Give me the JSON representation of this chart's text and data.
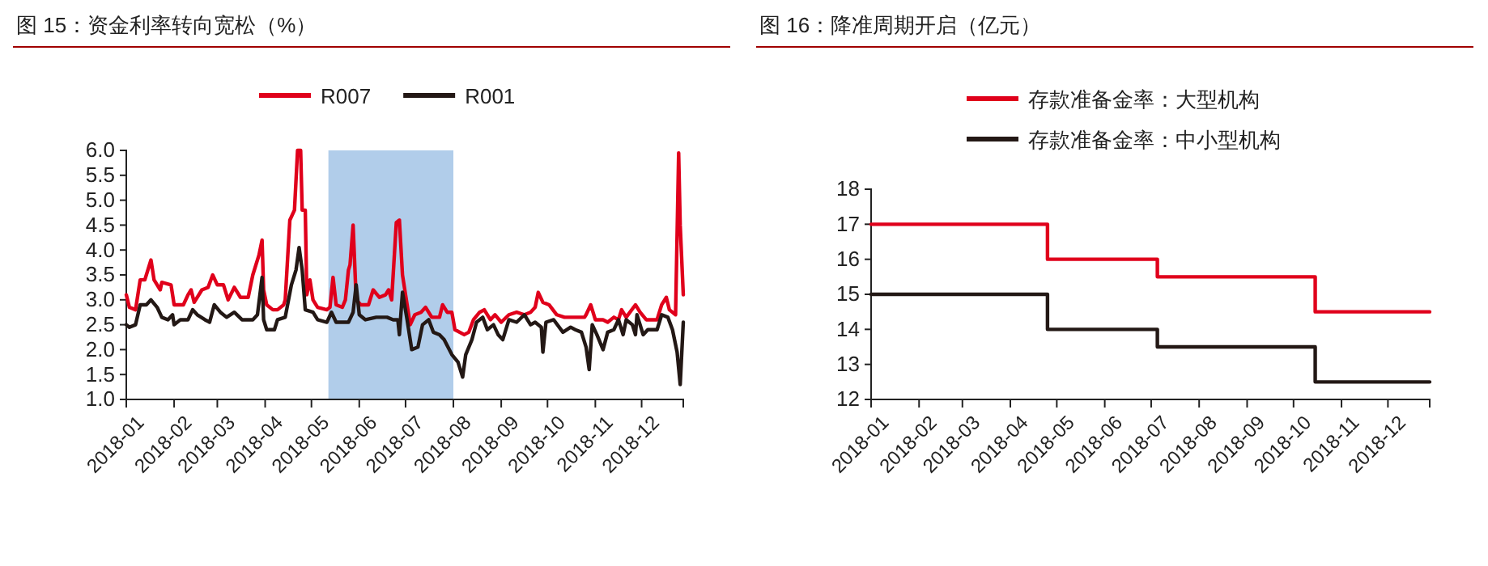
{
  "chart_data": [
    {
      "type": "line",
      "title": "图 15：资金利率转向宽松（%）",
      "legend": "top left",
      "xlim": [
        "2018-01-01",
        "2018-12-28"
      ],
      "xticks": [
        "2018-01",
        "2018-02",
        "2018-03",
        "2018-04",
        "2018-05",
        "2018-06",
        "2018-07",
        "2018-08",
        "2018-09",
        "2018-10",
        "2018-11",
        "2018-12"
      ],
      "ylim": [
        1,
        6
      ],
      "yticks": [
        {
          "value": 1,
          "label": "1.0"
        },
        {
          "value": 1.5,
          "label": "1.5"
        },
        {
          "value": 2,
          "label": "2.0"
        },
        {
          "value": 2.5,
          "label": "2.5"
        },
        {
          "value": 3,
          "label": "3.0"
        },
        {
          "value": 3.5,
          "label": "3.5"
        },
        {
          "value": 4,
          "label": "4.0"
        },
        {
          "value": 4.5,
          "label": "4.5"
        },
        {
          "value": 5,
          "label": "5.0"
        },
        {
          "value": 5.5,
          "label": "5.5"
        },
        {
          "value": 6,
          "label": "6.0"
        }
      ],
      "bands": [
        {
          "axis": "x",
          "from": "2018-05-12",
          "to": "2018-08-01",
          "color": "#a9c8e8"
        }
      ],
      "series": [
        {
          "name": "R007",
          "color": "#e0001b",
          "x": [
            "2018-01-01",
            "2018-01-03",
            "2018-01-07",
            "2018-01-10",
            "2018-01-13",
            "2018-01-17",
            "2018-01-19",
            "2018-01-23",
            "2018-01-24",
            "2018-01-30",
            "2018-02-01",
            "2018-02-07",
            "2018-02-10",
            "2018-02-12",
            "2018-02-14",
            "2018-02-19",
            "2018-02-23",
            "2018-02-26",
            "2018-03-01",
            "2018-03-05",
            "2018-03-08",
            "2018-03-12",
            "2018-03-16",
            "2018-03-21",
            "2018-03-24",
            "2018-03-28",
            "2018-03-30",
            "2018-03-31",
            "2018-04-02",
            "2018-04-06",
            "2018-04-09",
            "2018-04-13",
            "2018-04-14",
            "2018-04-17",
            "2018-04-20",
            "2018-04-22",
            "2018-04-24",
            "2018-04-25",
            "2018-04-27",
            "2018-04-28",
            "2018-04-30",
            "2018-05-02",
            "2018-05-05",
            "2018-05-11",
            "2018-05-13",
            "2018-05-15",
            "2018-05-17",
            "2018-05-21",
            "2018-05-23",
            "2018-05-25",
            "2018-05-26",
            "2018-05-28",
            "2018-05-30",
            "2018-06-02",
            "2018-06-07",
            "2018-06-10",
            "2018-06-14",
            "2018-06-18",
            "2018-06-20",
            "2018-06-22",
            "2018-06-25",
            "2018-06-27",
            "2018-06-29",
            "2018-07-02",
            "2018-07-04",
            "2018-07-07",
            "2018-07-11",
            "2018-07-14",
            "2018-07-18",
            "2018-07-23",
            "2018-07-25",
            "2018-07-28",
            "2018-07-31",
            "2018-08-02",
            "2018-08-08",
            "2018-08-11",
            "2018-08-14",
            "2018-08-18",
            "2018-08-21",
            "2018-08-25",
            "2018-08-28",
            "2018-09-01",
            "2018-09-06",
            "2018-09-11",
            "2018-09-16",
            "2018-09-20",
            "2018-09-23",
            "2018-09-25",
            "2018-09-28",
            "2018-10-02",
            "2018-10-07",
            "2018-10-12",
            "2018-10-19",
            "2018-10-25",
            "2018-10-26",
            "2018-10-29",
            "2018-11-01",
            "2018-11-06",
            "2018-11-09",
            "2018-11-13",
            "2018-11-16",
            "2018-11-18",
            "2018-11-21",
            "2018-11-27",
            "2018-11-30",
            "2018-12-04",
            "2018-12-11",
            "2018-12-14",
            "2018-12-17",
            "2018-12-19",
            "2018-12-23",
            "2018-12-25",
            "2018-12-26",
            "2018-12-28"
          ],
          "values": [
            3.1,
            2.85,
            2.8,
            3.4,
            3.4,
            3.8,
            3.4,
            3.2,
            3.35,
            3.3,
            2.9,
            2.9,
            3.1,
            3.2,
            2.95,
            3.2,
            3.25,
            3.5,
            3.3,
            3.3,
            3.0,
            3.25,
            3.05,
            3.05,
            3.5,
            3.9,
            4.2,
            3.2,
            2.9,
            2.8,
            2.8,
            2.9,
            3.0,
            4.6,
            4.8,
            6.0,
            6.0,
            4.8,
            4.8,
            3.1,
            3.4,
            3.0,
            2.85,
            2.8,
            2.85,
            3.45,
            2.9,
            2.85,
            3.0,
            3.6,
            3.7,
            4.5,
            3.0,
            2.9,
            2.9,
            3.2,
            3.05,
            3.1,
            3.2,
            3.0,
            4.55,
            4.6,
            3.5,
            2.9,
            2.5,
            2.7,
            2.75,
            2.85,
            2.65,
            2.65,
            2.9,
            2.75,
            2.75,
            2.4,
            2.3,
            2.35,
            2.6,
            2.75,
            2.8,
            2.6,
            2.7,
            2.55,
            2.7,
            2.75,
            2.7,
            2.75,
            2.85,
            3.15,
            2.95,
            2.9,
            2.7,
            2.65,
            2.65,
            2.65,
            2.7,
            2.9,
            2.6,
            2.6,
            2.55,
            2.65,
            2.6,
            2.8,
            2.65,
            2.9,
            2.75,
            2.6,
            2.6,
            2.9,
            3.05,
            2.8,
            2.7,
            5.95,
            4.5,
            3.1
          ]
        },
        {
          "name": "R001",
          "color": "#231815",
          "x": [
            "2018-01-01",
            "2018-01-03",
            "2018-01-07",
            "2018-01-10",
            "2018-01-14",
            "2018-01-17",
            "2018-01-21",
            "2018-01-24",
            "2018-01-28",
            "2018-01-31",
            "2018-02-01",
            "2018-02-05",
            "2018-02-10",
            "2018-02-13",
            "2018-02-16",
            "2018-02-21",
            "2018-02-24",
            "2018-02-27",
            "2018-03-03",
            "2018-03-07",
            "2018-03-12",
            "2018-03-17",
            "2018-03-24",
            "2018-03-27",
            "2018-03-30",
            "2018-03-31",
            "2018-04-02",
            "2018-04-07",
            "2018-04-09",
            "2018-04-14",
            "2018-04-18",
            "2018-04-21",
            "2018-04-23",
            "2018-04-25",
            "2018-04-27",
            "2018-05-02",
            "2018-05-05",
            "2018-05-11",
            "2018-05-14",
            "2018-05-17",
            "2018-05-25",
            "2018-05-28",
            "2018-05-30",
            "2018-06-01",
            "2018-06-05",
            "2018-06-12",
            "2018-06-19",
            "2018-06-23",
            "2018-06-26",
            "2018-06-27",
            "2018-06-29",
            "2018-07-02",
            "2018-07-05",
            "2018-07-09",
            "2018-07-12",
            "2018-07-16",
            "2018-07-19",
            "2018-07-23",
            "2018-07-26",
            "2018-07-31",
            "2018-08-04",
            "2018-08-07",
            "2018-08-09",
            "2018-08-13",
            "2018-08-16",
            "2018-08-20",
            "2018-08-23",
            "2018-08-27",
            "2018-08-30",
            "2018-09-02",
            "2018-09-06",
            "2018-09-11",
            "2018-09-16",
            "2018-09-20",
            "2018-09-23",
            "2018-09-27",
            "2018-09-28",
            "2018-09-30",
            "2018-10-05",
            "2018-10-11",
            "2018-10-16",
            "2018-10-19",
            "2018-10-23",
            "2018-10-26",
            "2018-10-28",
            "2018-10-30",
            "2018-11-02",
            "2018-11-06",
            "2018-11-09",
            "2018-11-13",
            "2018-11-16",
            "2018-11-19",
            "2018-11-21",
            "2018-11-25",
            "2018-11-27",
            "2018-11-28",
            "2018-12-02",
            "2018-12-05",
            "2018-12-11",
            "2018-12-14",
            "2018-12-18",
            "2018-12-21",
            "2018-12-24",
            "2018-12-26",
            "2018-12-28"
          ],
          "values": [
            2.5,
            2.45,
            2.5,
            2.9,
            2.9,
            3.0,
            2.85,
            2.65,
            2.6,
            2.7,
            2.5,
            2.6,
            2.6,
            2.8,
            2.7,
            2.6,
            2.55,
            2.9,
            2.75,
            2.65,
            2.75,
            2.6,
            2.6,
            2.7,
            3.45,
            2.6,
            2.4,
            2.4,
            2.6,
            2.65,
            3.3,
            3.6,
            4.05,
            3.6,
            2.8,
            2.75,
            2.6,
            2.55,
            2.75,
            2.55,
            2.55,
            2.75,
            3.3,
            2.7,
            2.6,
            2.65,
            2.65,
            2.6,
            2.6,
            2.3,
            3.15,
            2.6,
            2.0,
            2.05,
            2.5,
            2.6,
            2.35,
            2.3,
            2.2,
            1.9,
            1.75,
            1.45,
            1.9,
            2.2,
            2.55,
            2.65,
            2.4,
            2.5,
            2.3,
            2.2,
            2.6,
            2.55,
            2.7,
            2.5,
            2.55,
            2.45,
            1.95,
            2.55,
            2.6,
            2.35,
            2.45,
            2.4,
            2.35,
            2.05,
            1.6,
            2.5,
            2.3,
            2.0,
            2.35,
            2.4,
            2.6,
            2.3,
            2.6,
            2.5,
            2.3,
            2.7,
            2.3,
            2.4,
            2.4,
            2.7,
            2.65,
            2.4,
            1.95,
            1.3,
            2.55
          ]
        }
      ]
    },
    {
      "type": "step",
      "title": "图 16：降准周期开启（亿元）",
      "legend": "top left",
      "xlim": [
        "2018-01-01",
        "2018-12-28"
      ],
      "xticks": [
        "2018-01",
        "2018-02",
        "2018-03",
        "2018-04",
        "2018-05",
        "2018-06",
        "2018-07",
        "2018-08",
        "2018-09",
        "2018-10",
        "2018-11",
        "2018-12"
      ],
      "ylim": [
        12,
        18
      ],
      "yticks": [
        12,
        13,
        14,
        15,
        16,
        17,
        18
      ],
      "series": [
        {
          "name": "存款准备金率：大型机构",
          "color": "#e0001b",
          "x": [
            "2018-01-01",
            "2018-04-25",
            "2018-07-05",
            "2018-10-15",
            "2018-12-28"
          ],
          "values": [
            17,
            16,
            15.5,
            14.5,
            14.5
          ]
        },
        {
          "name": "存款准备金率：中小型机构",
          "color": "#231815",
          "x": [
            "2018-01-01",
            "2018-04-25",
            "2018-07-05",
            "2018-10-15",
            "2018-12-28"
          ],
          "values": [
            15,
            14,
            13.5,
            12.5,
            12.5
          ]
        }
      ]
    }
  ]
}
